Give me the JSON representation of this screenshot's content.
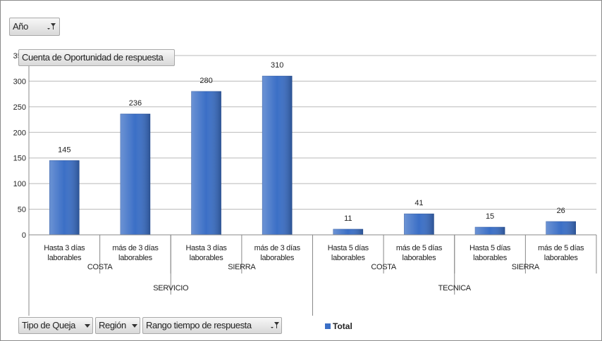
{
  "filter_fields": [
    "Año"
  ],
  "value_field": "Cuenta de Oportunidad de respuesta",
  "row_fields": [
    "Tipo de Queja",
    "Región",
    "Rango tiempo de respuesta"
  ],
  "chart_data": {
    "type": "bar",
    "categories": [
      "Hasta 3 días laborables",
      "más de 3 días laborables",
      "Hasta 3 días laborables",
      "más de 3 días laborables",
      "Hasta 5 días laborables",
      "más de 5 días laborables",
      "Hasta 5 días laborables",
      "más de 5 días laborables"
    ],
    "category_groups": [
      [
        "COSTA",
        "SIERRA",
        "COSTA",
        "SIERRA"
      ],
      [
        "SERVICIO",
        "TECNICA"
      ]
    ],
    "series": [
      {
        "name": "Total",
        "color": "#3b6fc6",
        "values": [
          145,
          236,
          280,
          310,
          11,
          41,
          15,
          26
        ]
      }
    ],
    "ylim": [
      0,
      350
    ],
    "yticks": [
      0,
      50,
      100,
      150,
      200,
      250,
      300,
      350
    ],
    "grid": true,
    "legend": "bottom"
  }
}
